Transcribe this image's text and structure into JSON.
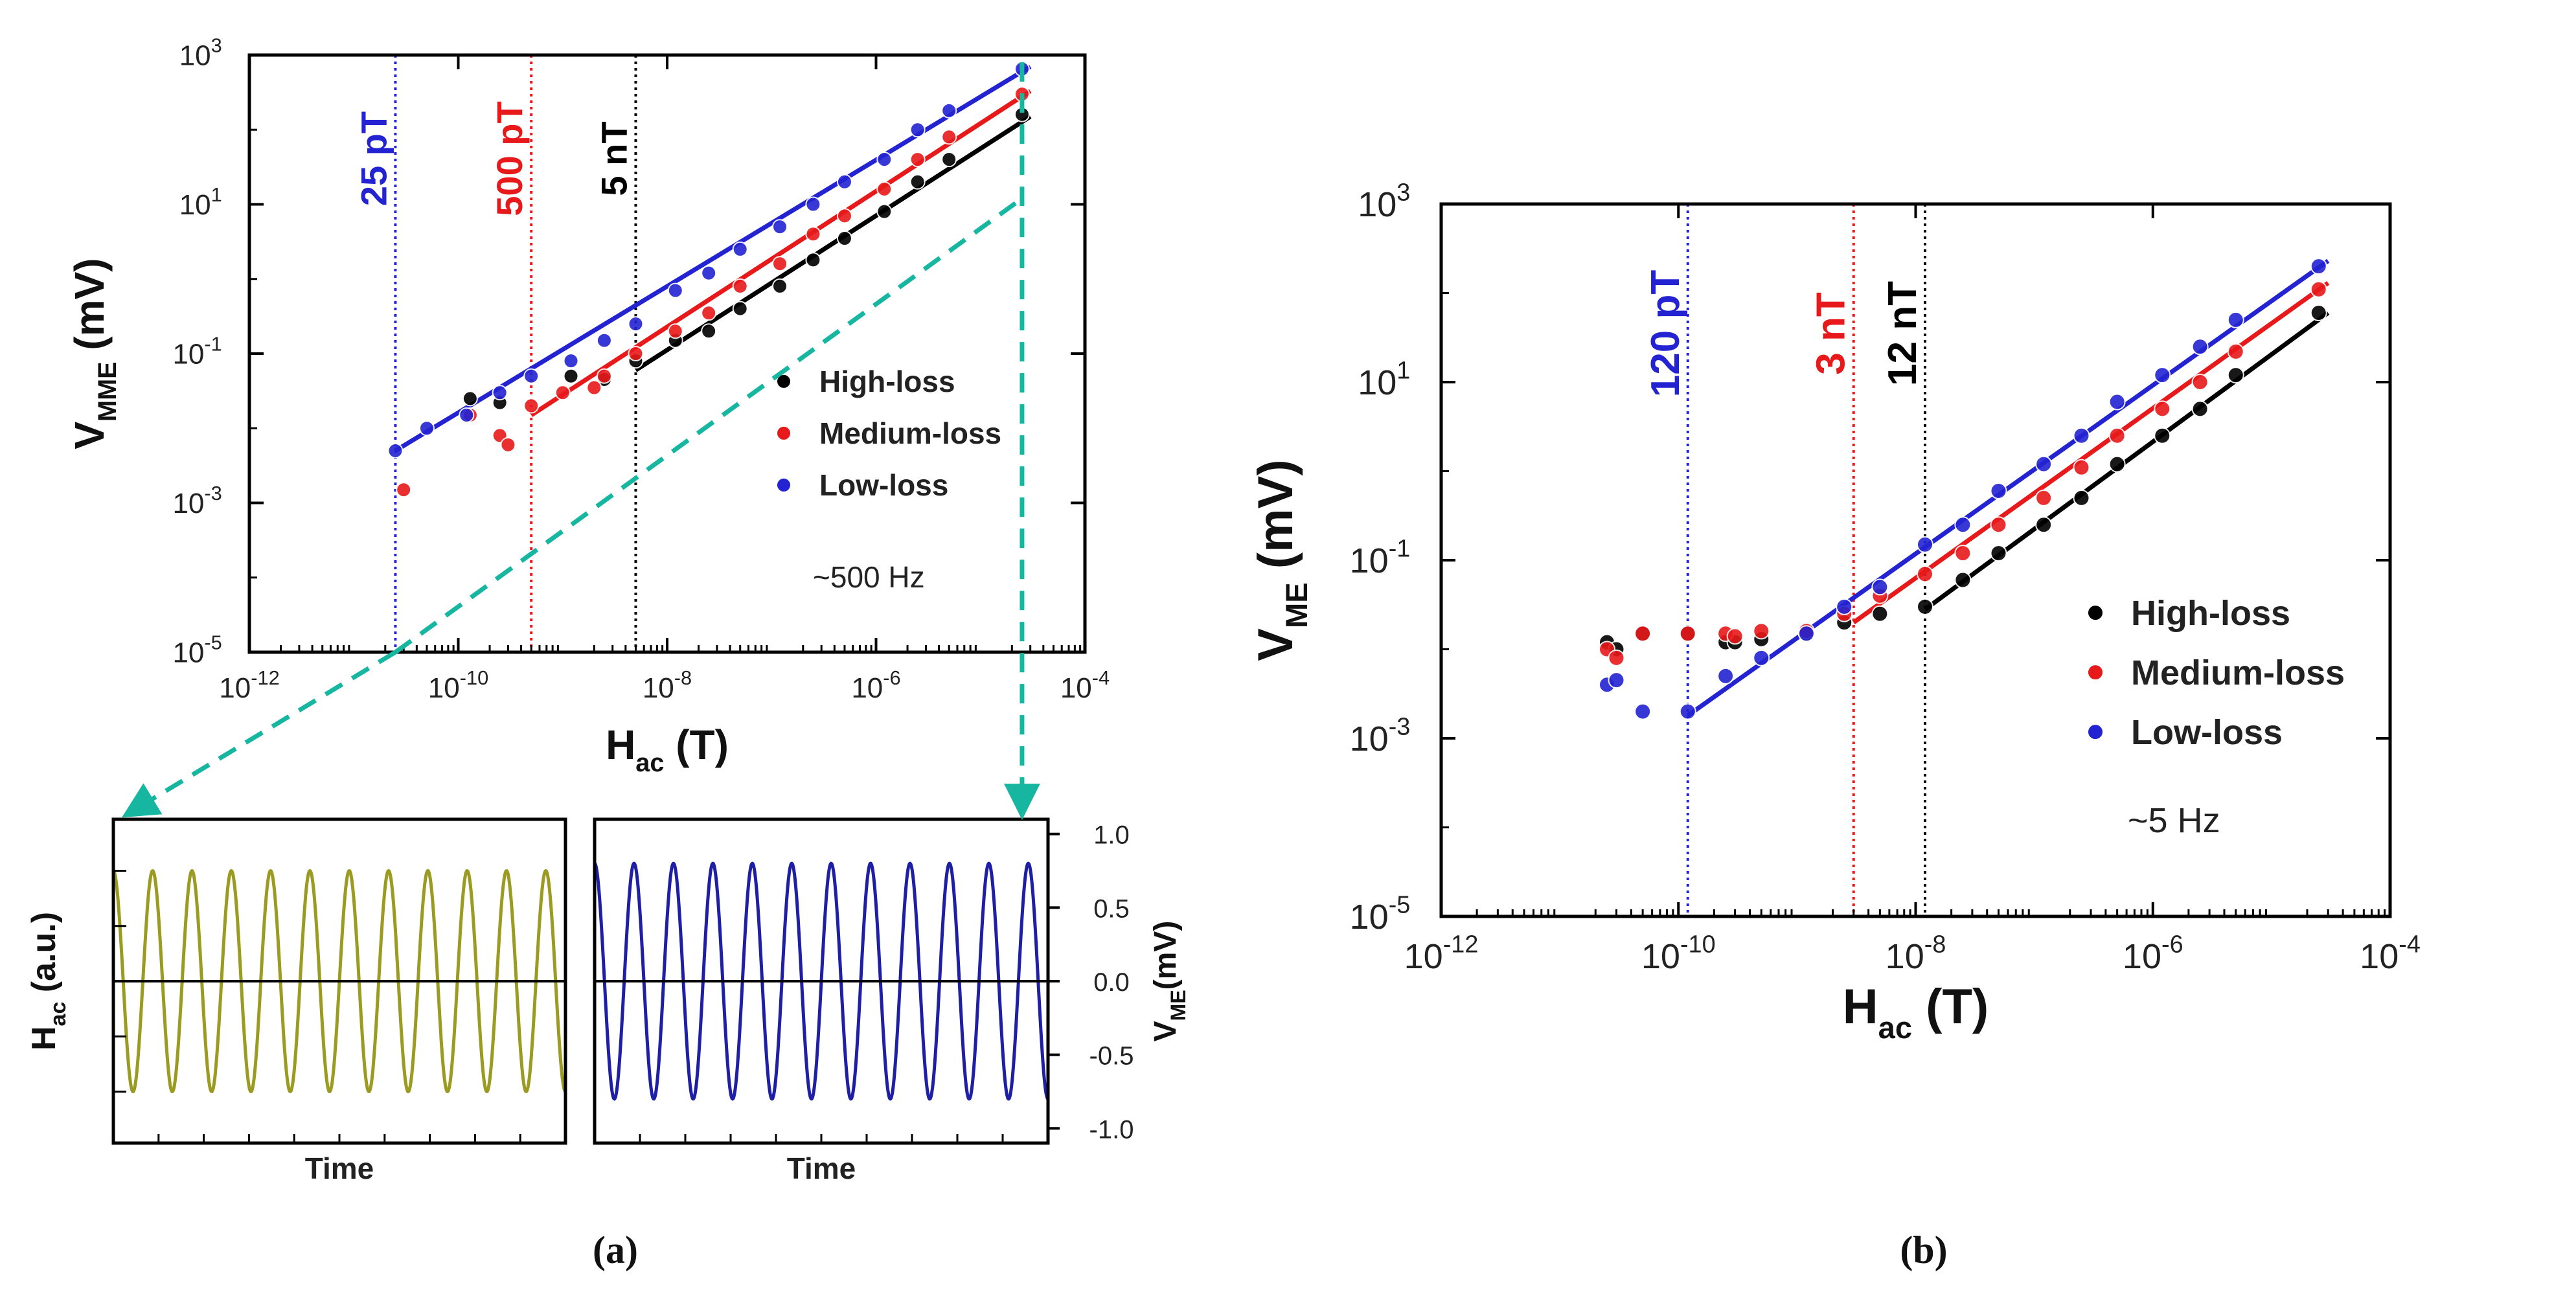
{
  "figure": {
    "caption_a": "(a)",
    "caption_b": "(b)",
    "colors": {
      "high_loss": "#000000",
      "medium_loss": "#e8191b",
      "low_loss": "#2323d2",
      "guide_arrow": "#16b6a0",
      "excitation_wave": "#9b9b22",
      "response_wave": "#1f1fa5"
    }
  },
  "chart_data": [
    {
      "id": "panel-a-main",
      "type": "scatter",
      "scale": "log-log",
      "xlabel_main": "H",
      "xlabel_sub": "ac",
      "xlabel_unit": " (T)",
      "ylabel_main": "V",
      "ylabel_sub": "MME",
      "ylabel_unit": " (mV)",
      "xlim": [
        1e-12,
        0.0001
      ],
      "ylim": [
        1e-05,
        1000.0
      ],
      "xticks": [
        {
          "v": 1e-12,
          "base": "10",
          "exp": "-12"
        },
        {
          "v": 1e-10,
          "base": "10",
          "exp": "-10"
        },
        {
          "v": 1e-08,
          "base": "10",
          "exp": "-8"
        },
        {
          "v": 1e-06,
          "base": "10",
          "exp": "-6"
        },
        {
          "v": 0.0001,
          "base": "10",
          "exp": "-4"
        }
      ],
      "yticks": [
        {
          "v": 1e-05,
          "base": "10",
          "exp": "-5"
        },
        {
          "v": 0.001,
          "base": "10",
          "exp": "-3"
        },
        {
          "v": 0.1,
          "base": "10",
          "exp": "-1"
        },
        {
          "v": 10,
          "base": "10",
          "exp": "1"
        },
        {
          "v": 1000,
          "base": "10",
          "exp": "3"
        }
      ],
      "annotation": "~500 Hz",
      "legend_position": "right-center",
      "vlines": [
        {
          "x": 2.5e-11,
          "label": "25 pT",
          "series": "low_loss"
        },
        {
          "x": 5e-10,
          "label": "500 pT",
          "series": "medium_loss"
        },
        {
          "x": 5e-09,
          "label": "5 nT",
          "series": "high_loss"
        }
      ],
      "series": [
        {
          "key": "high_loss",
          "name": "High-loss",
          "points": [
            [
              1.3e-10,
              0.025
            ],
            [
              2.5e-10,
              0.022
            ],
            [
              1.2e-09,
              0.05
            ],
            [
              2.5e-09,
              0.045
            ],
            [
              5e-09,
              0.08
            ],
            [
              1.2e-08,
              0.15
            ],
            [
              2.5e-08,
              0.2
            ],
            [
              5e-08,
              0.4
            ],
            [
              1.2e-07,
              0.8
            ],
            [
              2.5e-07,
              1.8
            ],
            [
              5e-07,
              3.5
            ],
            [
              1.2e-06,
              8
            ],
            [
              2.5e-06,
              20
            ],
            [
              5e-06,
              40
            ],
            [
              2.5e-05,
              160
            ]
          ],
          "fit": [
            [
              5e-09,
              0.06
            ],
            [
              3e-05,
              150
            ]
          ]
        },
        {
          "key": "medium_loss",
          "name": "Medium-loss",
          "points": [
            [
              3e-11,
              0.0015
            ],
            [
              1.3e-10,
              0.015
            ],
            [
              2.5e-10,
              0.008
            ],
            [
              3e-10,
              0.006
            ],
            [
              5e-10,
              0.02
            ],
            [
              1e-09,
              0.03
            ],
            [
              2e-09,
              0.035
            ],
            [
              2.5e-09,
              0.05
            ],
            [
              5e-09,
              0.1
            ],
            [
              1.2e-08,
              0.2
            ],
            [
              2.5e-08,
              0.35
            ],
            [
              5e-08,
              0.8
            ],
            [
              1.2e-07,
              1.6
            ],
            [
              2.5e-07,
              4
            ],
            [
              5e-07,
              7
            ],
            [
              1.2e-06,
              16
            ],
            [
              2.5e-06,
              40
            ],
            [
              5e-06,
              80
            ],
            [
              2.5e-05,
              300
            ]
          ],
          "fit": [
            [
              5e-10,
              0.015
            ],
            [
              3e-05,
              330
            ]
          ]
        },
        {
          "key": "low_loss",
          "name": "Low-loss",
          "points": [
            [
              2.5e-11,
              0.005
            ],
            [
              5e-11,
              0.01
            ],
            [
              1.2e-10,
              0.015
            ],
            [
              2.5e-10,
              0.03
            ],
            [
              5e-10,
              0.05
            ],
            [
              1.2e-09,
              0.08
            ],
            [
              2.5e-09,
              0.15
            ],
            [
              5e-09,
              0.25
            ],
            [
              1.2e-08,
              0.7
            ],
            [
              2.5e-08,
              1.2
            ],
            [
              5e-08,
              2.5
            ],
            [
              1.2e-07,
              5
            ],
            [
              2.5e-07,
              10
            ],
            [
              5e-07,
              20
            ],
            [
              1.2e-06,
              40
            ],
            [
              2.5e-06,
              100
            ],
            [
              5e-06,
              180
            ],
            [
              2.5e-05,
              650
            ]
          ],
          "fit": [
            [
              2.5e-11,
              0.005
            ],
            [
              3e-05,
              700
            ]
          ]
        }
      ],
      "guide": {
        "from_x": 2.5e-11,
        "from_y": 1e-05,
        "to_x": 2.5e-05,
        "to_y": 12
      }
    },
    {
      "id": "panel-a-inset-left",
      "type": "line",
      "ylabel_main": "H",
      "ylabel_sub": "ac",
      "ylabel_unit": " (a.u.)",
      "xlabel": "Time",
      "cycles": 11.5,
      "amplitude": 0.75,
      "ylim": [
        -1.1,
        1.1
      ],
      "series": [
        {
          "key": "excitation_wave"
        }
      ]
    },
    {
      "id": "panel-a-inset-right",
      "type": "line",
      "ylabel_main": "V",
      "ylabel_sub": "ME",
      "ylabel_unit": "(mV)",
      "xlabel": "Time",
      "cycles": 11.5,
      "amplitude": 0.8,
      "ylim": [
        -1.1,
        1.1
      ],
      "yticks": [
        "1.0",
        "0.5",
        "0.0",
        "-0.5",
        "-1.0"
      ],
      "ytick_values": [
        1.0,
        0.5,
        0.0,
        -0.5,
        -1.0
      ],
      "series": [
        {
          "key": "response_wave"
        }
      ]
    },
    {
      "id": "panel-b-main",
      "type": "scatter",
      "scale": "log-log",
      "xlabel_main": "H",
      "xlabel_sub": "ac",
      "xlabel_unit": " (T)",
      "ylabel_main": "V",
      "ylabel_sub": "ME",
      "ylabel_unit": " (mV)",
      "xlim": [
        1e-12,
        0.0001
      ],
      "ylim": [
        1e-05,
        1000.0
      ],
      "xticks": [
        {
          "v": 1e-12,
          "base": "10",
          "exp": "-12"
        },
        {
          "v": 1e-10,
          "base": "10",
          "exp": "-10"
        },
        {
          "v": 1e-08,
          "base": "10",
          "exp": "-8"
        },
        {
          "v": 1e-06,
          "base": "10",
          "exp": "-6"
        },
        {
          "v": 0.0001,
          "base": "10",
          "exp": "-4"
        }
      ],
      "yticks": [
        {
          "v": 1e-05,
          "base": "10",
          "exp": "-5"
        },
        {
          "v": 0.001,
          "base": "10",
          "exp": "-3"
        },
        {
          "v": 0.1,
          "base": "10",
          "exp": "-1"
        },
        {
          "v": 10,
          "base": "10",
          "exp": "1"
        },
        {
          "v": 1000,
          "base": "10",
          "exp": "3"
        }
      ],
      "annotation": "~5 Hz",
      "legend_position": "right-center",
      "vlines": [
        {
          "x": 1.2e-10,
          "label": "120 pT",
          "series": "low_loss"
        },
        {
          "x": 3e-09,
          "label": "3 nT",
          "series": "medium_loss"
        },
        {
          "x": 1.2e-08,
          "label": "12 nT",
          "series": "high_loss"
        }
      ],
      "series": [
        {
          "key": "high_loss",
          "name": "High-loss",
          "points": [
            [
              2.5e-11,
              0.012
            ],
            [
              3e-11,
              0.01
            ],
            [
              5e-11,
              0.015
            ],
            [
              1.2e-10,
              0.015
            ],
            [
              2.5e-10,
              0.012
            ],
            [
              3e-10,
              0.012
            ],
            [
              5e-10,
              0.013
            ],
            [
              1.2e-09,
              0.015
            ],
            [
              2.5e-09,
              0.02
            ],
            [
              5e-09,
              0.025
            ],
            [
              1.2e-08,
              0.03
            ],
            [
              2.5e-08,
              0.06
            ],
            [
              5e-08,
              0.12
            ],
            [
              1.2e-07,
              0.25
            ],
            [
              2.5e-07,
              0.5
            ],
            [
              5e-07,
              1.2
            ],
            [
              1.2e-06,
              2.5
            ],
            [
              2.5e-06,
              5
            ],
            [
              5e-06,
              12
            ],
            [
              2.5e-05,
              60
            ]
          ],
          "fit": [
            [
              1.2e-08,
              0.028
            ],
            [
              3e-05,
              60
            ]
          ]
        },
        {
          "key": "medium_loss",
          "name": "Medium-loss",
          "points": [
            [
              2.5e-11,
              0.01
            ],
            [
              3e-11,
              0.008
            ],
            [
              5e-11,
              0.015
            ],
            [
              1.2e-10,
              0.015
            ],
            [
              2.5e-10,
              0.015
            ],
            [
              3e-10,
              0.014
            ],
            [
              5e-10,
              0.016
            ],
            [
              1.2e-09,
              0.016
            ],
            [
              2.5e-09,
              0.025
            ],
            [
              5e-09,
              0.04
            ],
            [
              1.2e-08,
              0.07
            ],
            [
              2.5e-08,
              0.12
            ],
            [
              5e-08,
              0.25
            ],
            [
              1.2e-07,
              0.5
            ],
            [
              2.5e-07,
              1.1
            ],
            [
              5e-07,
              2.5
            ],
            [
              1.2e-06,
              5
            ],
            [
              2.5e-06,
              10
            ],
            [
              5e-06,
              22
            ],
            [
              2.5e-05,
              110
            ]
          ],
          "fit": [
            [
              3e-09,
              0.02
            ],
            [
              3e-05,
              130
            ]
          ]
        },
        {
          "key": "low_loss",
          "name": "Low-loss",
          "points": [
            [
              2.5e-11,
              0.004
            ],
            [
              3e-11,
              0.0045
            ],
            [
              5e-11,
              0.002
            ],
            [
              1.2e-10,
              0.002
            ],
            [
              2.5e-10,
              0.005
            ],
            [
              5e-10,
              0.008
            ],
            [
              1.2e-09,
              0.015
            ],
            [
              2.5e-09,
              0.03
            ],
            [
              5e-09,
              0.05
            ],
            [
              1.2e-08,
              0.15
            ],
            [
              2.5e-08,
              0.25
            ],
            [
              5e-08,
              0.6
            ],
            [
              1.2e-07,
              1.2
            ],
            [
              2.5e-07,
              2.5
            ],
            [
              5e-07,
              6
            ],
            [
              1.2e-06,
              12
            ],
            [
              2.5e-06,
              25
            ],
            [
              5e-06,
              50
            ],
            [
              2.5e-05,
              200
            ]
          ],
          "fit": [
            [
              1.2e-10,
              0.0018
            ],
            [
              3e-05,
              230
            ]
          ]
        }
      ]
    }
  ]
}
